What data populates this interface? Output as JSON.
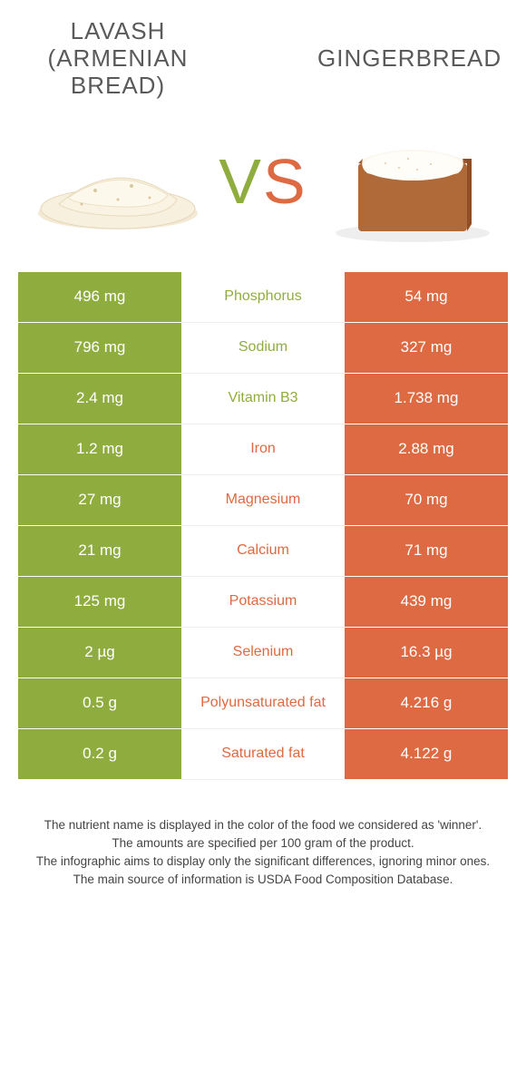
{
  "header": {
    "left_title_lines": [
      "LAVASH",
      "(ARMENIAN",
      "BREAD)"
    ],
    "right_title": "GINGERBREAD",
    "vs_v": "V",
    "vs_s": "S"
  },
  "colors": {
    "green": "#8fad3f",
    "orange": "#dd6a42",
    "mid_bg": "#ffffff",
    "row_border": "#ffffff",
    "text_white": "#ffffff"
  },
  "table": {
    "rows": [
      {
        "nutrient": "Phosphorus",
        "left": "496 mg",
        "right": "54 mg",
        "winner": "left"
      },
      {
        "nutrient": "Sodium",
        "left": "796 mg",
        "right": "327 mg",
        "winner": "left"
      },
      {
        "nutrient": "Vitamin B3",
        "left": "2.4 mg",
        "right": "1.738 mg",
        "winner": "left"
      },
      {
        "nutrient": "Iron",
        "left": "1.2 mg",
        "right": "2.88 mg",
        "winner": "right"
      },
      {
        "nutrient": "Magnesium",
        "left": "27 mg",
        "right": "70 mg",
        "winner": "right"
      },
      {
        "nutrient": "Calcium",
        "left": "21 mg",
        "right": "71 mg",
        "winner": "right"
      },
      {
        "nutrient": "Potassium",
        "left": "125 mg",
        "right": "439 mg",
        "winner": "right"
      },
      {
        "nutrient": "Selenium",
        "left": "2 µg",
        "right": "16.3 µg",
        "winner": "right"
      },
      {
        "nutrient": "Polyunsaturated fat",
        "left": "0.5 g",
        "right": "4.216 g",
        "winner": "right"
      },
      {
        "nutrient": "Saturated fat",
        "left": "0.2 g",
        "right": "4.122 g",
        "winner": "right"
      }
    ]
  },
  "footer": {
    "lines": [
      "The nutrient name is displayed in the color of the food we considered as 'winner'.",
      "The amounts are specified per 100 gram of the product.",
      "The infographic aims to display only the significant differences, ignoring minor ones.",
      "The main source of information is USDA Food Composition Database."
    ]
  }
}
